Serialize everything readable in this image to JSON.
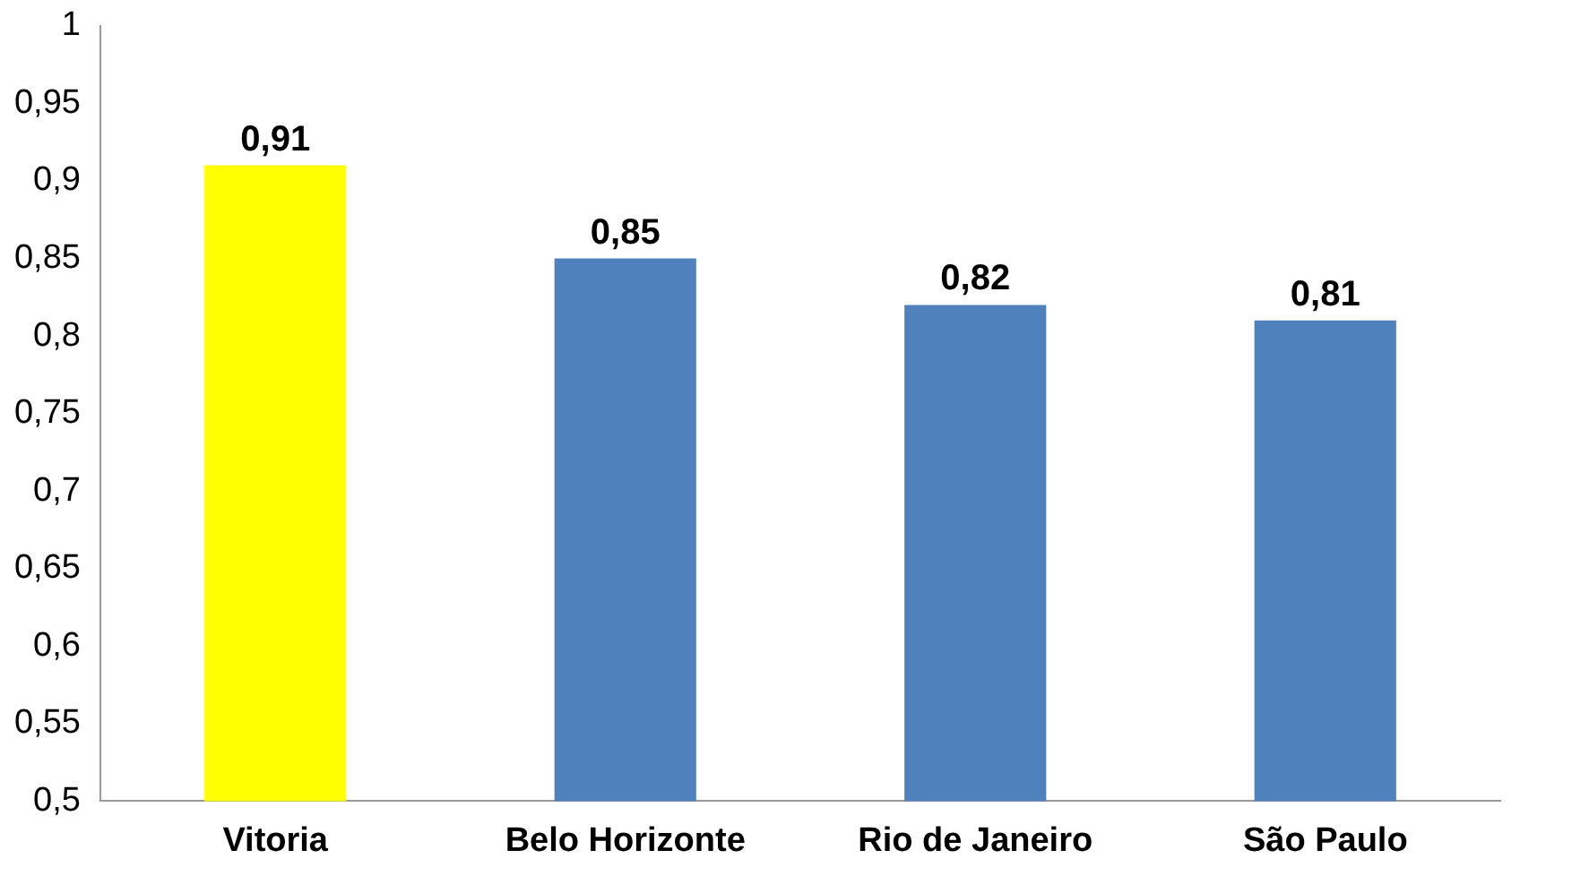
{
  "chart_data": {
    "type": "bar",
    "categories": [
      "Vitoria",
      "Belo Horizonte",
      "Rio de Janeiro",
      "São Paulo"
    ],
    "values": [
      0.91,
      0.85,
      0.82,
      0.81
    ],
    "colors": [
      "#ffff00",
      "#4f81bd",
      "#4f81bd",
      "#4f81bd"
    ],
    "value_labels": [
      "0,91",
      "0,85",
      "0,82",
      "0,81"
    ],
    "ylim": [
      0.5,
      1
    ],
    "yticks": [
      {
        "value": 0.5,
        "label": "0,5"
      },
      {
        "value": 0.55,
        "label": "0,55"
      },
      {
        "value": 0.6,
        "label": "0,6"
      },
      {
        "value": 0.65,
        "label": "0,65"
      },
      {
        "value": 0.7,
        "label": "0,7"
      },
      {
        "value": 0.75,
        "label": "0,75"
      },
      {
        "value": 0.8,
        "label": "0,8"
      },
      {
        "value": 0.85,
        "label": "0,85"
      },
      {
        "value": 0.9,
        "label": "0,9"
      },
      {
        "value": 0.95,
        "label": "0,95"
      },
      {
        "value": 1,
        "label": "1"
      }
    ],
    "grid": false,
    "legend": false
  }
}
